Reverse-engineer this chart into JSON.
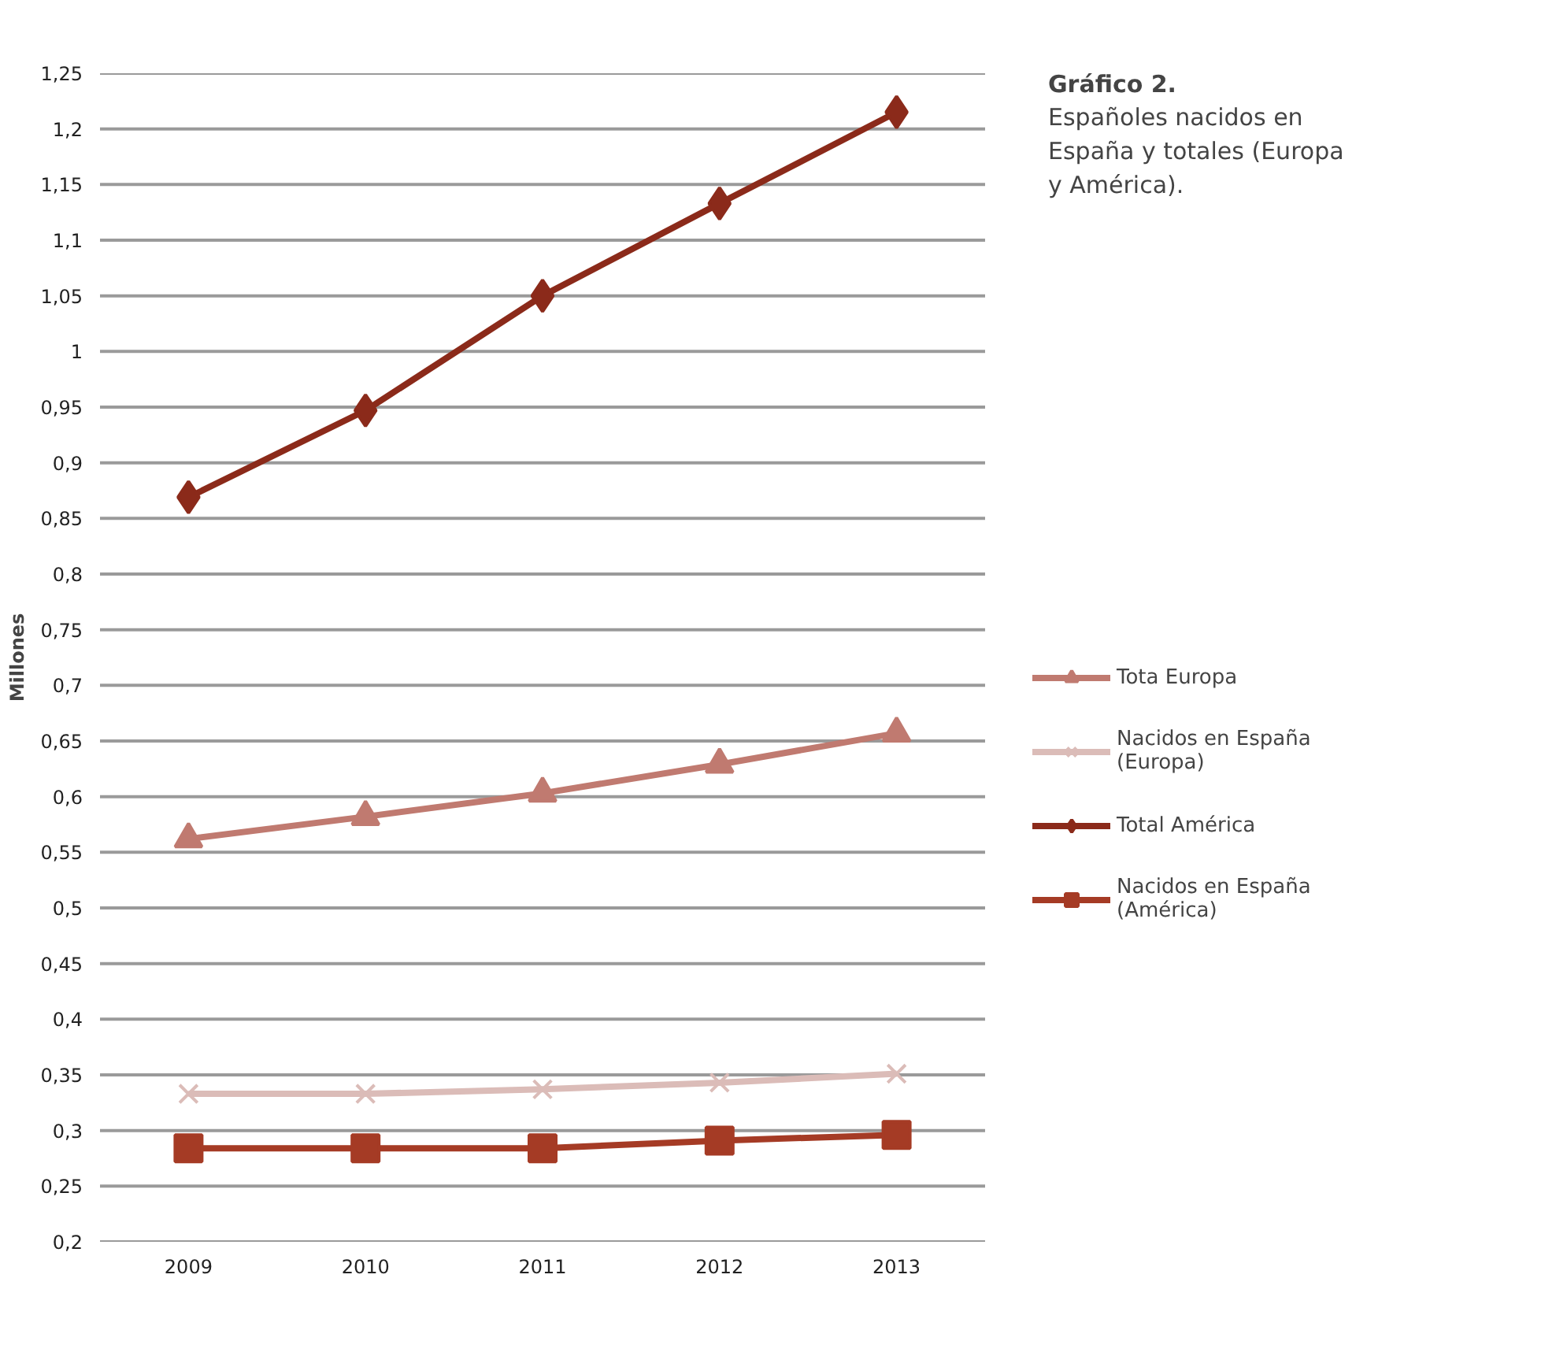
{
  "chart_data": {
    "type": "line",
    "title": "Gráfico 2.",
    "subtitle": "Españoles nacidos en España y totales (Europa y América).",
    "ylabel": "Millones",
    "categories": [
      "2009",
      "2010",
      "2011",
      "2012",
      "2013"
    ],
    "series": [
      {
        "name": "Tota Europa",
        "color": "#c07a70",
        "marker": "triangle",
        "values": [
          0.562,
          0.582,
          0.603,
          0.629,
          0.657
        ]
      },
      {
        "name": "Nacidos en España (Europa)",
        "color": "#dbbcb8",
        "marker": "cross",
        "values": [
          0.333,
          0.333,
          0.337,
          0.343,
          0.351
        ]
      },
      {
        "name": "Total América",
        "color": "#8b2a1a",
        "marker": "diamond",
        "values": [
          0.869,
          0.947,
          1.05,
          1.133,
          1.215
        ]
      },
      {
        "name": "Nacidos en España (América)",
        "color": "#a53b25",
        "marker": "square",
        "values": [
          0.284,
          0.284,
          0.284,
          0.291,
          0.296
        ]
      }
    ],
    "ylim": [
      0.2,
      1.25
    ],
    "yticks": [
      {
        "value": 0.2,
        "label": "0,2"
      },
      {
        "value": 0.25,
        "label": "0,25"
      },
      {
        "value": 0.3,
        "label": "0,3"
      },
      {
        "value": 0.35,
        "label": "0,35"
      },
      {
        "value": 0.4,
        "label": "0,4"
      },
      {
        "value": 0.45,
        "label": "0,45"
      },
      {
        "value": 0.5,
        "label": "0,5"
      },
      {
        "value": 0.55,
        "label": "0,55"
      },
      {
        "value": 0.6,
        "label": "0,6"
      },
      {
        "value": 0.65,
        "label": "0,65"
      },
      {
        "value": 0.7,
        "label": "0,7"
      },
      {
        "value": 0.75,
        "label": "0,75"
      },
      {
        "value": 0.8,
        "label": "0,8"
      },
      {
        "value": 0.85,
        "label": "0,85"
      },
      {
        "value": 0.9,
        "label": "0,9"
      },
      {
        "value": 0.95,
        "label": "0,95"
      },
      {
        "value": 1,
        "label": "1"
      },
      {
        "value": 1.05,
        "label": "1,05"
      },
      {
        "value": 1.1,
        "label": "1,1"
      },
      {
        "value": 1.15,
        "label": "1,15"
      },
      {
        "value": 1.2,
        "label": "1,2"
      },
      {
        "value": 1.25,
        "label": "1,25"
      }
    ],
    "grid": "y",
    "legend": "right",
    "line_style": "solid"
  }
}
